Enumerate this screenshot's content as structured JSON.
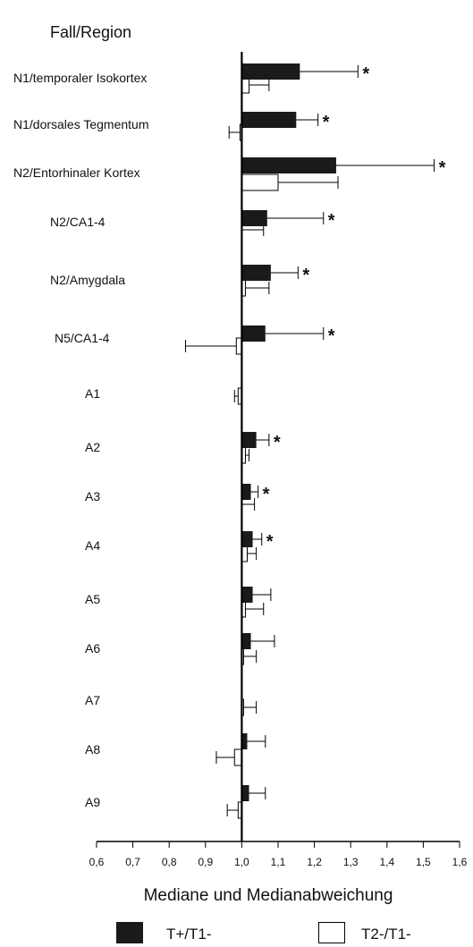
{
  "chart_data": {
    "type": "bar",
    "orientation": "horizontal",
    "title": "Fall/Region",
    "xlabel": "Mediane und Medianabweichung",
    "xlim": [
      0.6,
      1.6
    ],
    "xticks": [
      "0,6",
      "0,7",
      "0,8",
      "0,9",
      "1,0",
      "1,1",
      "1,2",
      "1,3",
      "1,4",
      "1,5",
      "1,6"
    ],
    "baseline": 1.0,
    "categories": [
      "N1/temporaler Isokortex",
      "N1/dorsales Tegmentum",
      "N2/Entorhinaler Kortex",
      "N2/CA1-4",
      "N2/Amygdala",
      "N5/CA1-4",
      "A1",
      "A2",
      "A3",
      "A4",
      "A5",
      "A6",
      "A7",
      "A8",
      "A9"
    ],
    "series": [
      {
        "name": "T+/T1-",
        "color": "#1a1a1a",
        "values": [
          1.16,
          1.15,
          1.26,
          1.07,
          1.08,
          1.065,
          1.0,
          1.04,
          1.025,
          1.03,
          1.03,
          1.025,
          1.0,
          1.015,
          1.02
        ],
        "errors": [
          0.16,
          0.06,
          0.27,
          0.155,
          0.075,
          0.16,
          0.0,
          0.035,
          0.02,
          0.025,
          0.05,
          0.065,
          0.0,
          0.05,
          0.045
        ],
        "significant": [
          true,
          true,
          true,
          true,
          true,
          true,
          false,
          true,
          true,
          true,
          false,
          false,
          false,
          false,
          false
        ]
      },
      {
        "name": "T2-/T1-",
        "color": "#ffffff",
        "values": [
          1.02,
          0.995,
          1.1,
          1.0,
          1.01,
          0.985,
          0.99,
          1.01,
          1.0,
          1.015,
          1.01,
          1.005,
          1.005,
          0.98,
          0.99
        ],
        "errors": [
          0.055,
          0.03,
          0.165,
          0.06,
          0.065,
          0.14,
          0.01,
          0.01,
          0.035,
          0.025,
          0.05,
          0.035,
          0.035,
          0.05,
          0.03
        ]
      }
    ],
    "significance_marker": "*",
    "grid": false,
    "legend": "bottom"
  }
}
